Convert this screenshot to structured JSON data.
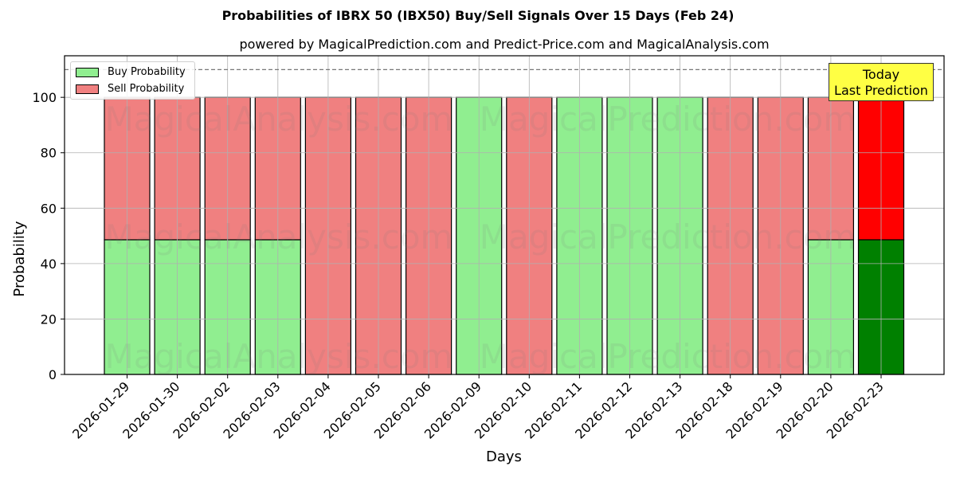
{
  "header": {
    "title": "Probabilities of IBRX 50 (IBX50) Buy/Sell Signals Over 15 Days (Feb 24)",
    "subtitle": "powered by MagicalPrediction.com and Predict-Price.com and MagicalAnalysis.com"
  },
  "legend": {
    "buy_label": "Buy Probability",
    "sell_label": "Sell Probability"
  },
  "annotation": {
    "line1": "Today",
    "line2": "Last Prediction"
  },
  "watermarks": [
    "MagicalAnalysis.com",
    "MagicalPrediction.com"
  ],
  "colors": {
    "buy": "#90ee90",
    "sell": "#f08080",
    "buy_today": "#008000",
    "sell_today": "#ff0000",
    "annotation_bg": "#ffff44",
    "grid": "#b0b0b0"
  },
  "chart_data": {
    "type": "bar",
    "stacked": true,
    "title": "Probabilities of IBRX 50 (IBX50) Buy/Sell Signals Over 15 Days (Feb 24)",
    "subtitle": "powered by MagicalPrediction.com and Predict-Price.com and MagicalAnalysis.com",
    "xlabel": "Days",
    "ylabel": "Probability",
    "ylim": [
      0,
      115
    ],
    "yticks": [
      0,
      20,
      40,
      60,
      80,
      100
    ],
    "grid": true,
    "legend_position": "upper left",
    "reference_line": {
      "y": 110,
      "style": "dashed"
    },
    "categories": [
      "2026-01-29",
      "2026-01-30",
      "2026-02-02",
      "2026-02-03",
      "2026-02-04",
      "2026-02-05",
      "2026-02-06",
      "2026-02-09",
      "2026-02-10",
      "2026-02-11",
      "2026-02-12",
      "2026-02-13",
      "2026-02-18",
      "2026-02-19",
      "2026-02-20",
      "2026-02-23"
    ],
    "series": [
      {
        "name": "Buy Probability",
        "values": [
          48.6,
          48.6,
          48.6,
          48.6,
          0,
          0,
          0,
          100,
          0,
          100,
          100,
          100,
          0,
          0,
          48.6,
          48.6
        ]
      },
      {
        "name": "Sell Probability",
        "values": [
          51.4,
          51.4,
          51.4,
          51.4,
          100,
          100,
          100,
          0,
          100,
          0,
          0,
          0,
          100,
          100,
          51.4,
          51.4
        ]
      }
    ],
    "annotations": [
      {
        "text": "Today\nLast Prediction",
        "x": "2026-02-23"
      }
    ]
  }
}
